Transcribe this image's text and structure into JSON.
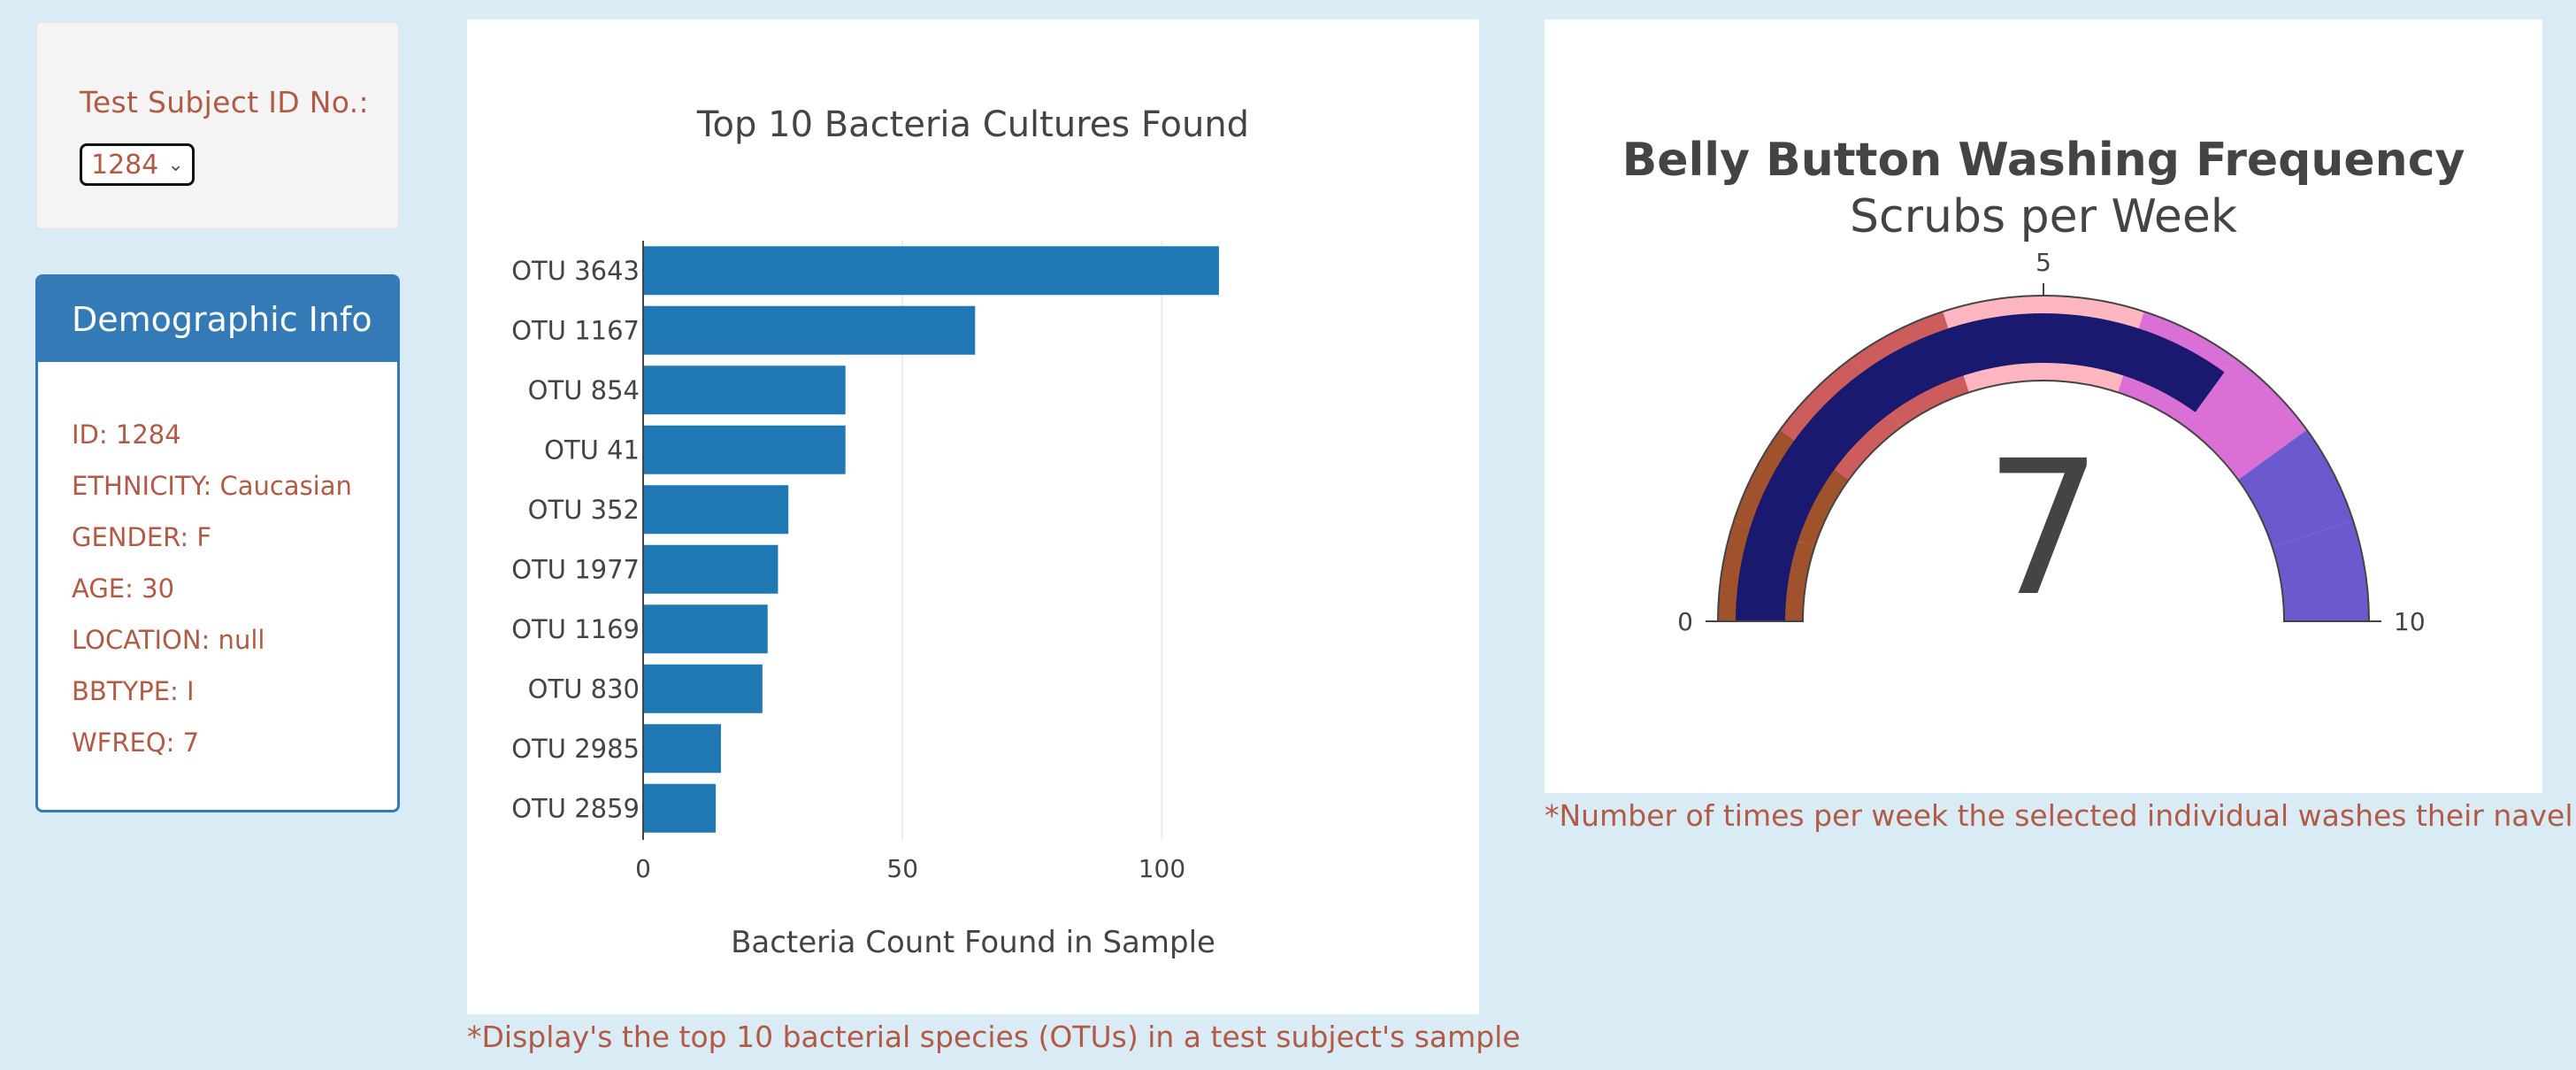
{
  "selector": {
    "label": "Test Subject ID No.:",
    "selected_value": "1284"
  },
  "demographics": {
    "heading": "Demographic Info",
    "items": [
      "ID: 1284",
      "ETHNICITY: Caucasian",
      "GENDER: F",
      "AGE: 30",
      "LOCATION: null",
      "BBTYPE: I",
      "WFREQ: 7"
    ]
  },
  "bar_caption": "*Display's the top 10 bacterial species (OTUs) in a test subject's sample",
  "gauge_caption": "*Number of times per week the selected individual washes their navel",
  "chart_data": [
    {
      "type": "bar",
      "orientation": "horizontal",
      "title": "Top 10 Bacteria Cultures Found",
      "xlabel": "Bacteria Count Found in Sample",
      "ylabel": "",
      "categories": [
        "OTU 3643",
        "OTU 1167",
        "OTU 854",
        "OTU 41",
        "OTU 352",
        "OTU 1977",
        "OTU 1169",
        "OTU 830",
        "OTU 2985",
        "OTU 2859"
      ],
      "values": [
        111,
        64,
        39,
        39,
        28,
        26,
        24,
        23,
        15,
        14
      ],
      "xlim": [
        0,
        140
      ],
      "xticks": [
        0,
        50,
        100
      ],
      "grid": true,
      "color": "#1f77b4"
    },
    {
      "type": "gauge",
      "title": "Belly Button Washing Frequency",
      "subtitle": "Scrubs per Week",
      "value": 7,
      "range": [
        0,
        10
      ],
      "ticks": [
        0,
        5,
        10
      ],
      "bar_color": "#191970",
      "steps": [
        {
          "range": [
            0,
            1
          ],
          "color": "#a0522d"
        },
        {
          "range": [
            1,
            2
          ],
          "color": "#a0522d"
        },
        {
          "range": [
            2,
            3
          ],
          "color": "#cd5c5c"
        },
        {
          "range": [
            3,
            4
          ],
          "color": "#cd5c5c"
        },
        {
          "range": [
            4,
            5
          ],
          "color": "#ffb6c1"
        },
        {
          "range": [
            5,
            6
          ],
          "color": "#ffb6c1"
        },
        {
          "range": [
            6,
            7
          ],
          "color": "#da70d6"
        },
        {
          "range": [
            7,
            8
          ],
          "color": "#da70d6"
        },
        {
          "range": [
            8,
            9
          ],
          "color": "#6a5acd"
        },
        {
          "range": [
            9,
            10
          ],
          "color": "#6a5acd"
        }
      ]
    }
  ]
}
